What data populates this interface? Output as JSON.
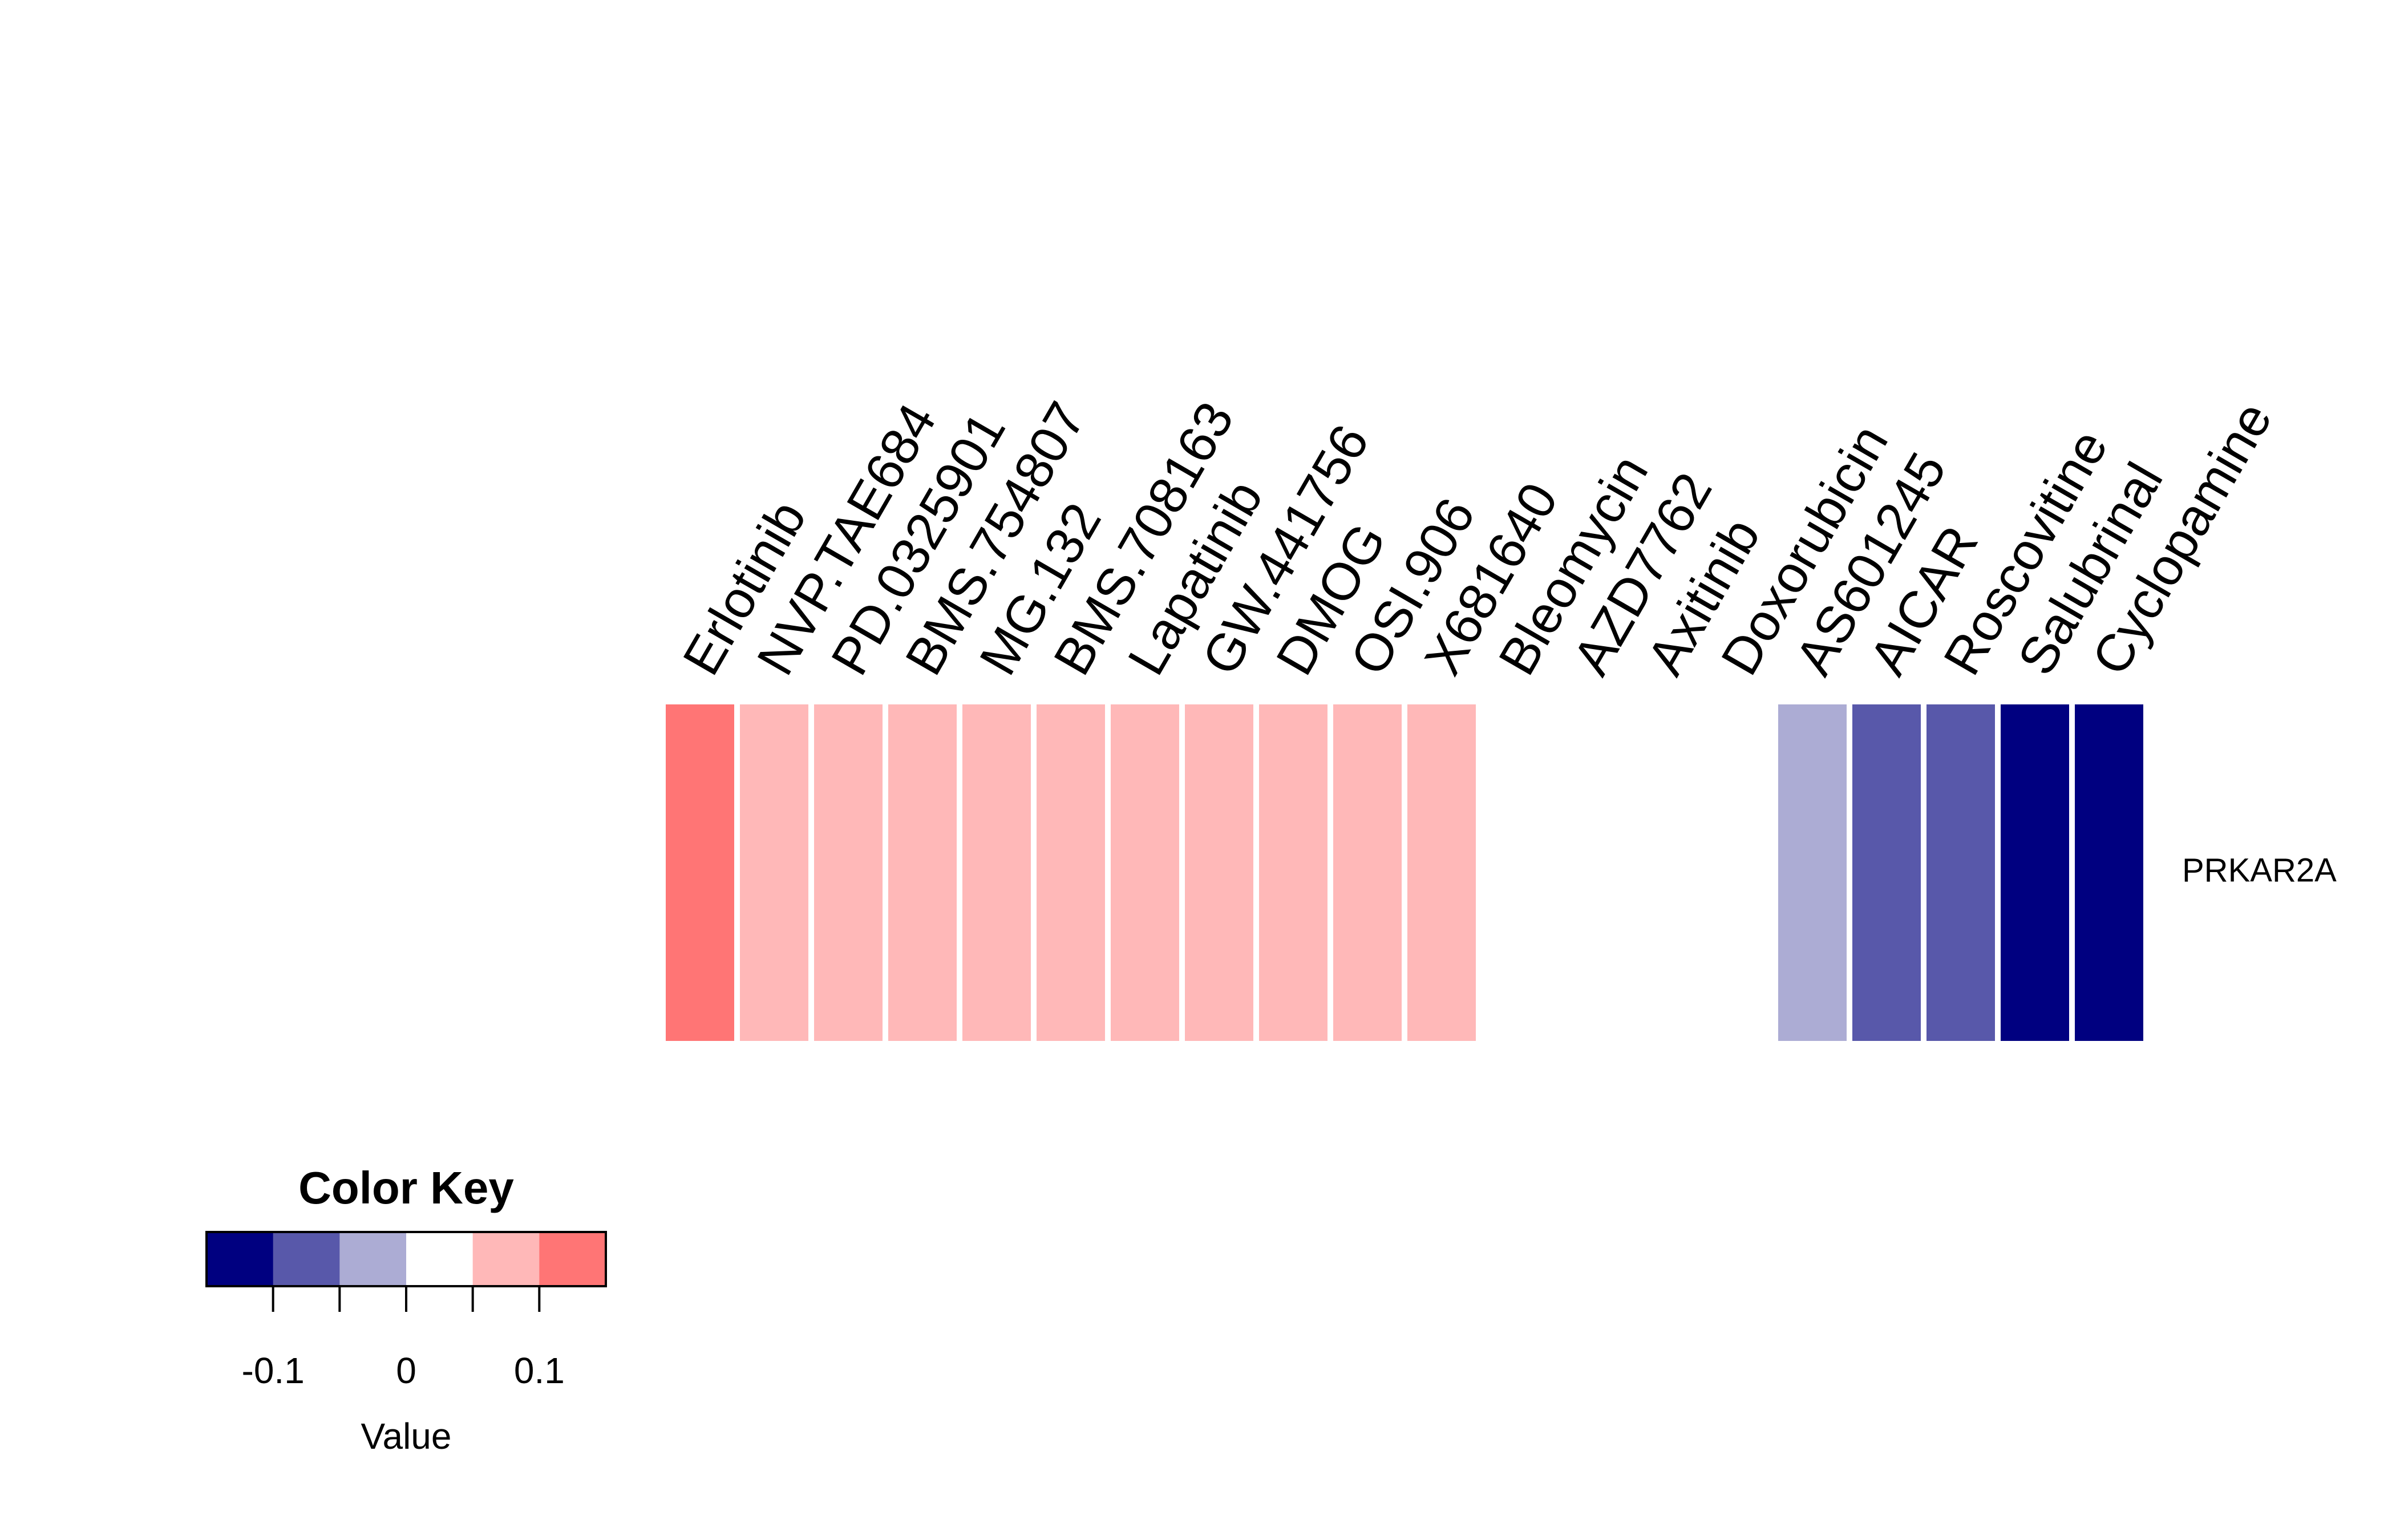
{
  "chart_data": {
    "type": "heatmap",
    "rows": [
      "PRKAR2A"
    ],
    "columns": [
      "Erlotinib",
      "NVP.TAE684",
      "PD.0325901",
      "BMS.754807",
      "MG.132",
      "BMS.708163",
      "Lapatinib",
      "GW.441756",
      "DMOG",
      "OSI.906",
      "X681640",
      "Bleomycin",
      "AZD7762",
      "Axitinib",
      "Doxorubicin",
      "AS601245",
      "AICAR",
      "Roscovitine",
      "Salubrinal",
      "Cyclopamine"
    ],
    "values": [
      [
        0.13,
        0.08,
        0.08,
        0.08,
        0.08,
        0.08,
        0.08,
        0.08,
        0.08,
        0.08,
        0.08,
        0.03,
        0.03,
        0.03,
        0.03,
        -0.03,
        -0.08,
        -0.08,
        -0.13,
        -0.13
      ]
    ],
    "color_key": {
      "title": "Color Key",
      "xlabel": "Value",
      "breaks": [
        -0.15,
        -0.1,
        -0.05,
        0,
        0.05,
        0.1,
        0.15
      ],
      "colors": [
        "#000080",
        "#5858AA",
        "#ACACD4",
        "#FFFFFF",
        "#FFB8B8",
        "#FF7575",
        "#FF3333"
      ],
      "ticks": [
        -0.1,
        -0.05,
        0,
        0.05,
        0.1
      ],
      "tick_labels": [
        {
          "value": -0.1,
          "label": "-0.1"
        },
        {
          "value": 0,
          "label": "0"
        },
        {
          "value": 0.1,
          "label": "0.1"
        }
      ]
    }
  }
}
